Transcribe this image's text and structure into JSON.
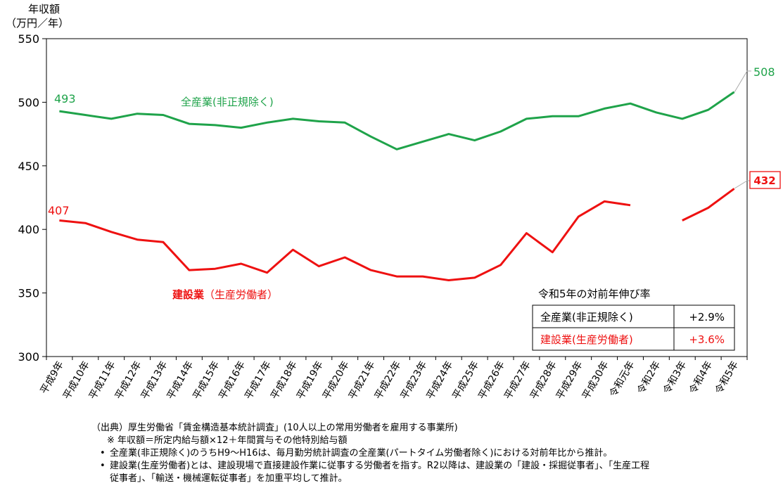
{
  "chart_data": {
    "type": "line",
    "ylabel_line1": "年収額",
    "ylabel_line2": "（万円／年）",
    "ylim": [
      300,
      550
    ],
    "yticks": [
      300,
      350,
      400,
      450,
      500,
      550
    ],
    "categories": [
      "平成9年",
      "平成10年",
      "平成11年",
      "平成12年",
      "平成13年",
      "平成14年",
      "平成15年",
      "平成16年",
      "平成17年",
      "平成18年",
      "平成19年",
      "平成20年",
      "平成21年",
      "平成22年",
      "平成23年",
      "平成24年",
      "平成25年",
      "平成26年",
      "平成27年",
      "平成28年",
      "平成29年",
      "平成30年",
      "令和元年",
      "令和2年",
      "令和3年",
      "令和4年",
      "令和5年"
    ],
    "series": [
      {
        "name": "全産業(非正規除く)",
        "color": "#1fa34a",
        "values": [
          493,
          490,
          487,
          491,
          490,
          483,
          482,
          480,
          484,
          487,
          485,
          484,
          473,
          463,
          469,
          475,
          470,
          477,
          487,
          489,
          489,
          495,
          499,
          492,
          487,
          494,
          508
        ]
      },
      {
        "name": "建設業",
        "name_suffix": "（生産労働者）",
        "color": "#ee1111",
        "values": [
          407,
          405,
          398,
          392,
          390,
          368,
          369,
          373,
          366,
          384,
          371,
          378,
          368,
          363,
          363,
          360,
          362,
          372,
          397,
          382,
          410,
          422,
          419,
          null,
          407,
          417,
          432
        ]
      }
    ],
    "labels": {
      "first_all": "493",
      "first_const": "407",
      "last_all": "508",
      "last_const": "432"
    }
  },
  "growth_table": {
    "title": "令和5年の対前年伸び率",
    "rows": [
      {
        "label": "全産業(非正規除く)",
        "value": "+2.9%"
      },
      {
        "label": "建設業(生産労働者)",
        "value": "+3.6%"
      }
    ]
  },
  "notes": {
    "source": "（出典）厚生労働省「賃金構造基本統計調査」(10人以上の常用労働者を雇用する事業所)",
    "formula": "※ 年収額＝所定内給与額×12＋年間賞与その他特別給与額",
    "bullet": "•",
    "note1": "全産業(非正規除く)のうちH9～H16は、毎月勤労統計調査の全産業(パートタイム労働者除く)における対前年比から推計。",
    "note2_line1": "建設業(生産労働者)とは、建設現場で直接建設作業に従事する労働者を指す。R2以降は、建設業の「建設・採掘従事者」、「生産工程",
    "note2_line2": "従事者」、「輸送・機械運転従事者」を加重平均して推計。"
  }
}
